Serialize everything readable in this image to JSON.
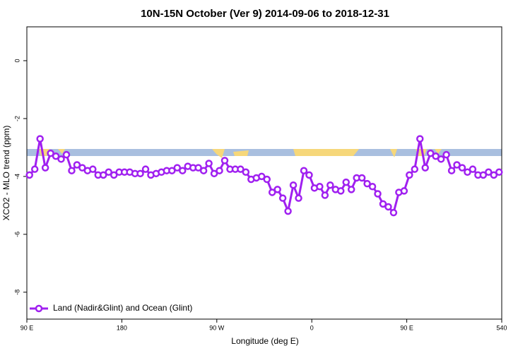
{
  "chart_data": {
    "type": "line",
    "title": "10N-15N October (Ver 9)   2014-09-06 to 2018-12-31",
    "x_label": "Longitude (deg E)",
    "y_label": "XCO2 - MLO trend (ppm)",
    "xlim": [
      90,
      540
    ],
    "xticks": [
      {
        "value": 90,
        "label": "90 E"
      },
      180,
      {
        "value": 270,
        "label": "90 W"
      },
      {
        "value": 360,
        "label": "0"
      },
      {
        "value": 450,
        "label": "90 E"
      },
      540
    ],
    "ylim": [
      -8.93,
      1.17
    ],
    "yticks": [
      0,
      -2,
      -4,
      -6,
      -8
    ],
    "legend": "bottom-left",
    "x": [
      92.5,
      97.5,
      102.5,
      107.5,
      112.5,
      117.5,
      122.5,
      127.5,
      132.5,
      137.5,
      142.5,
      147.5,
      152.5,
      157.5,
      162.5,
      167.5,
      172.5,
      177.5,
      182.5,
      187.5,
      192.5,
      197.5,
      202.5,
      207.5,
      212.5,
      217.5,
      222.5,
      227.5,
      232.5,
      237.5,
      242.5,
      247.5,
      252.5,
      257.5,
      262.5,
      267.5,
      272.5,
      277.5,
      282.5,
      287.5,
      292.5,
      297.5,
      302.5,
      307.5,
      312.5,
      317.5,
      322.5,
      327.5,
      332.5,
      337.5,
      342.5,
      347.5,
      352.5,
      357.5,
      362.5,
      367.5,
      372.5,
      377.5,
      382.5,
      387.5,
      392.5,
      397.5,
      402.5,
      407.5,
      412.5,
      417.5,
      422.5,
      427.5,
      432.5,
      437.5,
      442.5,
      447.5,
      452.5,
      457.5,
      462.5,
      467.5,
      472.5,
      477.5,
      482.5,
      487.5,
      492.5,
      497.5,
      502.5,
      507.5,
      512.5,
      517.5,
      522.5,
      527.5,
      532.5,
      537.5
    ],
    "series": [
      {
        "name": "Land (Nadir&Glint) and Ocean (Glint)",
        "color": "#a020f0",
        "values": [
          -3.95,
          -3.75,
          -2.7,
          -3.7,
          -3.2,
          -3.3,
          -3.4,
          -3.25,
          -3.8,
          -3.6,
          -3.7,
          -3.8,
          -3.75,
          -3.95,
          -3.95,
          -3.85,
          -3.95,
          -3.85,
          -3.85,
          -3.85,
          -3.9,
          -3.9,
          -3.75,
          -3.95,
          -3.9,
          -3.85,
          -3.8,
          -3.8,
          -3.7,
          -3.8,
          -3.65,
          -3.7,
          -3.7,
          -3.8,
          -3.55,
          -3.9,
          -3.8,
          -3.45,
          -3.75,
          -3.75,
          -3.75,
          -3.85,
          -4.1,
          -4.05,
          -4.0,
          -4.1,
          -4.55,
          -4.45,
          -4.75,
          -5.2,
          -4.3,
          -4.75,
          -3.8,
          -3.95,
          -4.4,
          -4.35,
          -4.65,
          -4.3,
          -4.45,
          -4.5,
          -4.2,
          -4.45,
          -4.05,
          -4.05,
          -4.25,
          -4.35,
          -4.6,
          -4.95,
          -5.05,
          -5.25,
          -4.55,
          -4.5,
          -3.95,
          -3.75,
          -2.7,
          -3.7,
          -3.2,
          -3.3,
          -3.4,
          -3.25,
          -3.8,
          -3.6,
          -3.7,
          -3.85,
          -3.75,
          -3.95,
          -3.95,
          -3.85,
          -3.95,
          -3.85
        ]
      }
    ]
  }
}
